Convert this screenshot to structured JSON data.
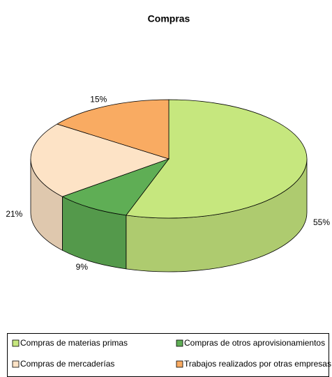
{
  "chart_data": {
    "type": "pie",
    "title": "Compras",
    "categories": [
      "Compras de materias primas",
      "Compras de otros aprovisionamientos",
      "Compras de mercaderías",
      "Trabajos realizados por otras empresas"
    ],
    "values": [
      55,
      9,
      21,
      15
    ],
    "value_labels": [
      "55%",
      "9%",
      "21%",
      "15%"
    ],
    "colors": [
      "#c6e77e",
      "#5fae55",
      "#fde3c6",
      "#f9ab62"
    ],
    "legend": "bottom"
  }
}
